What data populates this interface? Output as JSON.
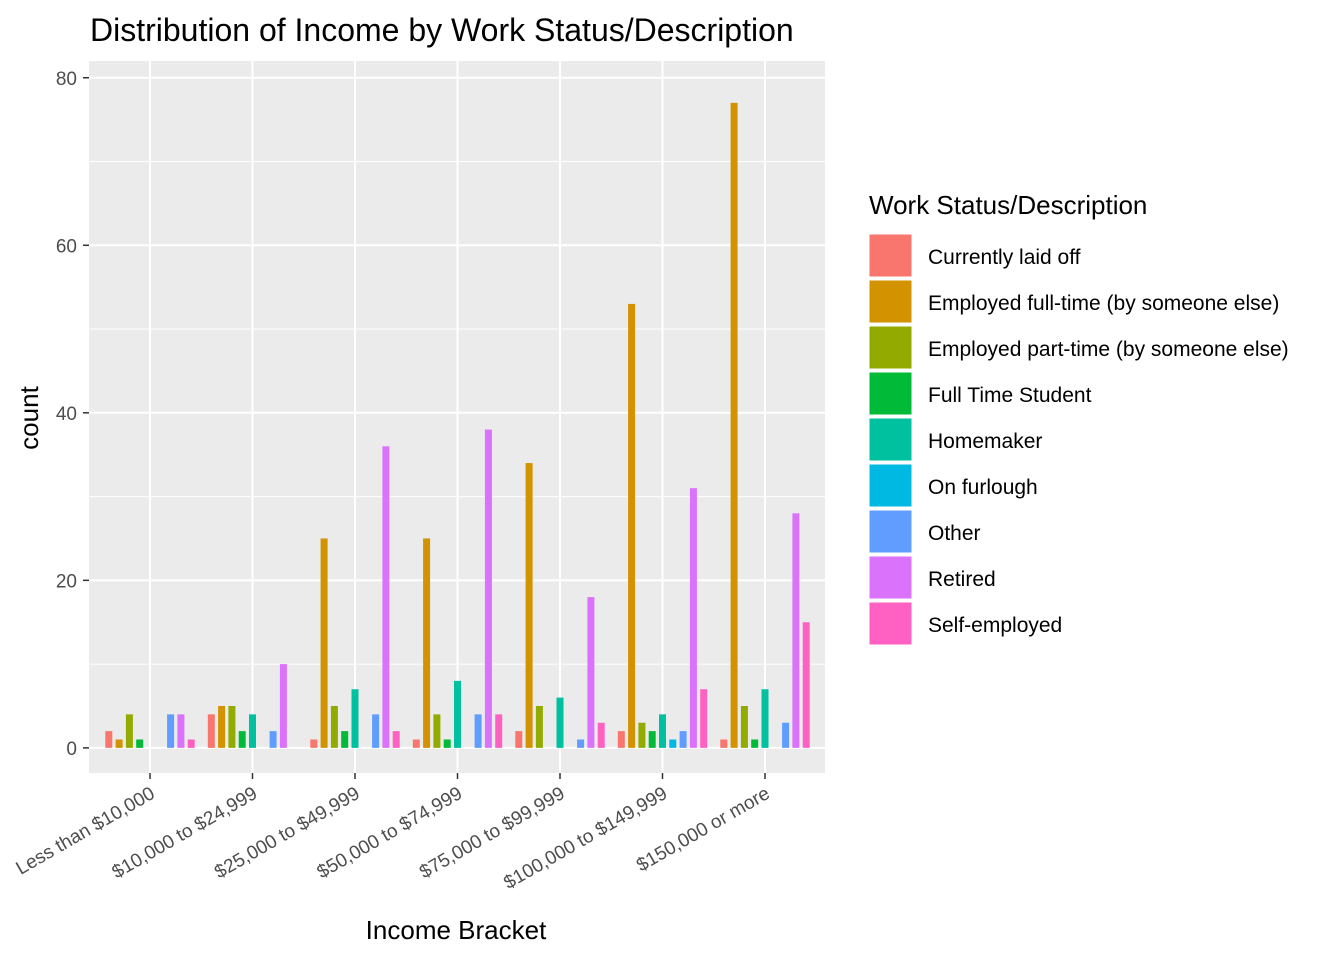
{
  "chart_data": {
    "type": "bar",
    "title": "Distribution of Income by Work Status/Description",
    "xlabel": "Income Bracket",
    "ylabel": "count",
    "ylim": [
      -3,
      82
    ],
    "yticks": [
      0,
      20,
      40,
      60,
      80
    ],
    "grid": true,
    "legend_position": "right",
    "legend_title": "Work Status/Description",
    "categories": [
      "Less than $10,000",
      "$10,000 to $24,999",
      "$25,000 to $49,999",
      "$50,000 to $74,999",
      "$75,000 to $99,999",
      "$100,000 to $149,999",
      "$150,000 or more"
    ],
    "series": [
      {
        "name": "Currently laid off",
        "color": "#F8766D",
        "values": [
          2,
          4,
          1,
          1,
          2,
          2,
          1
        ]
      },
      {
        "name": "Employed full-time (by someone else)",
        "color": "#D39200",
        "values": [
          1,
          5,
          25,
          25,
          34,
          53,
          77
        ]
      },
      {
        "name": "Employed part-time (by someone else)",
        "color": "#93AA00",
        "values": [
          4,
          5,
          5,
          4,
          5,
          3,
          5
        ]
      },
      {
        "name": "Full Time Student",
        "color": "#00BA38",
        "values": [
          1,
          2,
          2,
          1,
          0,
          2,
          1
        ]
      },
      {
        "name": "Homemaker",
        "color": "#00C19F",
        "values": [
          0,
          4,
          7,
          8,
          6,
          4,
          7
        ]
      },
      {
        "name": "On furlough",
        "color": "#00B9E3",
        "values": [
          0,
          0,
          0,
          0,
          0,
          1,
          0
        ]
      },
      {
        "name": "Other",
        "color": "#619CFF",
        "values": [
          4,
          2,
          4,
          4,
          1,
          2,
          3
        ]
      },
      {
        "name": "Retired",
        "color": "#DB72FB",
        "values": [
          4,
          10,
          36,
          38,
          18,
          31,
          28
        ]
      },
      {
        "name": "Self-employed",
        "color": "#FF61C3",
        "values": [
          1,
          0,
          2,
          4,
          3,
          7,
          15
        ]
      }
    ]
  }
}
